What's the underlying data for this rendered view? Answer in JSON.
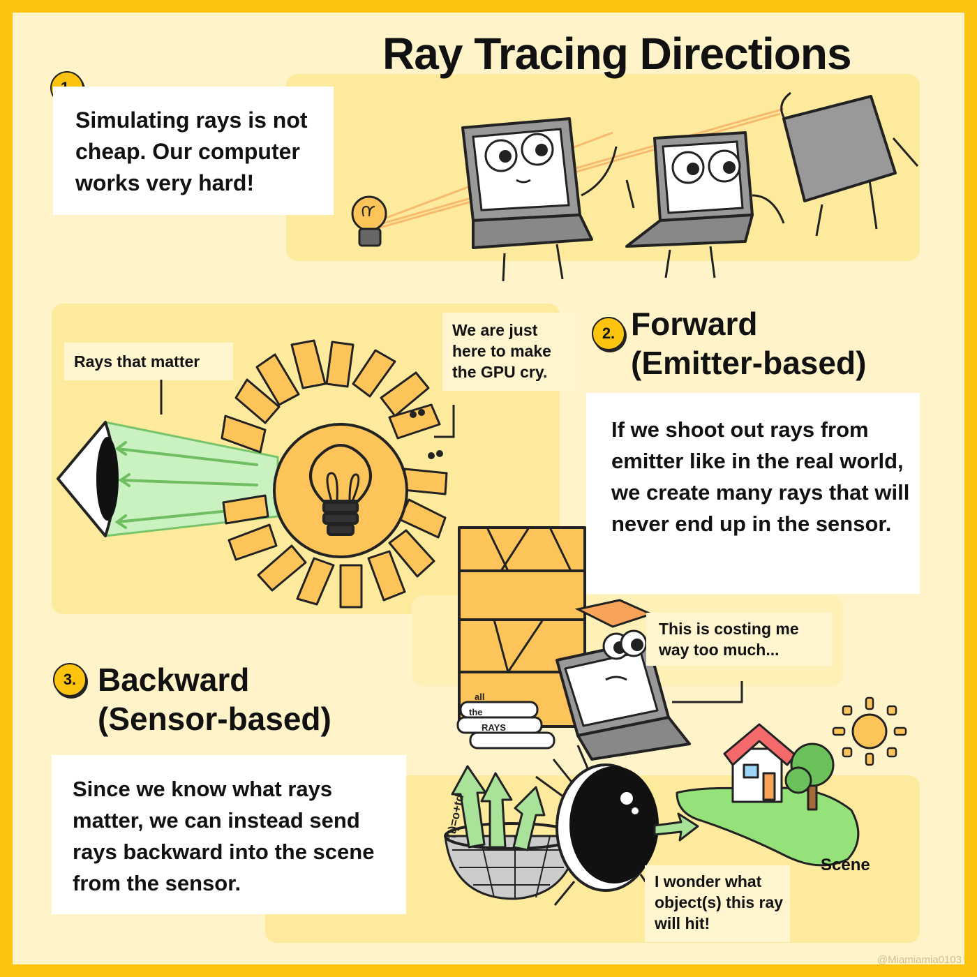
{
  "title": "Ray Tracing Directions",
  "step1": {
    "number": "1.",
    "text": "Simulating rays is not cheap. Our computer works very hard!"
  },
  "step2": {
    "number": "2.",
    "heading_line1": "Forward",
    "heading_line2": "(Emitter-based)",
    "text": "If we shoot out rays from emitter like in the real world, we create many rays that will never end up in the sensor.",
    "label_rays": "Rays that matter",
    "label_gpu": "We are just here to make the GPU cry."
  },
  "laptop_note": "This is costing me way too much...",
  "books": [
    "all",
    "the",
    "RAYS"
  ],
  "step3": {
    "number": "3.",
    "heading_line1": "Backward",
    "heading_line2": "(Sensor-based)",
    "text": "Since we know what rays matter, we can instead send rays backward into the scene from the sensor.",
    "basket_formula": "r(t)=o+td",
    "eye_note": "I wonder what object(s) this ray will hit!",
    "scene_label": "Scene"
  },
  "credit": "@Miamiamia0103",
  "colors": {
    "frame": "#fdc40f",
    "background": "#fff3c9",
    "panel": "#feea9d",
    "sun": "#fdc45a",
    "ray_green": "#c9f2c0"
  }
}
